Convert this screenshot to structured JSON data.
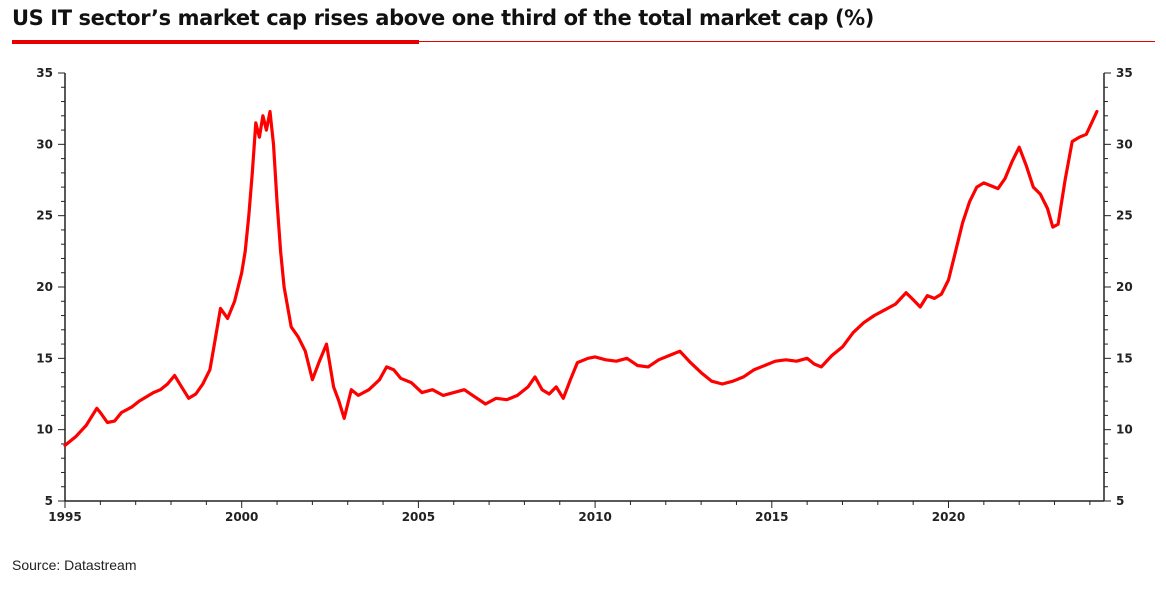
{
  "title": "US IT sector’s market cap rises above one third of the total market cap (%)",
  "source": "Source: Datastream",
  "colors": {
    "accent": "#e60000",
    "line": "#ff0000",
    "axis": "#222222",
    "text": "#111111"
  },
  "chart_data": {
    "type": "line",
    "title": "US IT sector’s market cap rises above one third of the total market cap (%)",
    "xlabel": "",
    "ylabel": "",
    "xlim": [
      1995,
      2024.4
    ],
    "ylim": [
      5,
      35
    ],
    "xticks": [
      1995,
      2000,
      2005,
      2010,
      2015,
      2020
    ],
    "yticks": [
      5,
      10,
      15,
      20,
      25,
      30,
      35
    ],
    "dual_y_axis": true,
    "grid": false,
    "legend": "none",
    "series": [
      {
        "color": "#ff0000",
        "x": [
          1995.0,
          1995.3,
          1995.6,
          1995.9,
          1996.0,
          1996.2,
          1996.4,
          1996.6,
          1996.9,
          1997.1,
          1997.3,
          1997.5,
          1997.7,
          1997.9,
          1998.1,
          1998.3,
          1998.5,
          1998.7,
          1998.9,
          1999.1,
          1999.2,
          1999.4,
          1999.6,
          1999.8,
          2000.0,
          2000.1,
          2000.2,
          2000.3,
          2000.4,
          2000.5,
          2000.6,
          2000.7,
          2000.8,
          2000.9,
          2001.0,
          2001.1,
          2001.2,
          2001.4,
          2001.6,
          2001.8,
          2002.0,
          2002.2,
          2002.4,
          2002.6,
          2002.75,
          2002.9,
          2003.1,
          2003.3,
          2003.6,
          2003.9,
          2004.1,
          2004.3,
          2004.5,
          2004.8,
          2005.1,
          2005.4,
          2005.7,
          2006.0,
          2006.3,
          2006.6,
          2006.9,
          2007.2,
          2007.5,
          2007.8,
          2008.1,
          2008.3,
          2008.5,
          2008.7,
          2008.9,
          2009.1,
          2009.3,
          2009.5,
          2009.8,
          2010.0,
          2010.3,
          2010.6,
          2010.9,
          2011.2,
          2011.5,
          2011.8,
          2012.1,
          2012.4,
          2012.7,
          2013.0,
          2013.3,
          2013.6,
          2013.9,
          2014.2,
          2014.5,
          2014.8,
          2015.1,
          2015.4,
          2015.7,
          2016.0,
          2016.2,
          2016.4,
          2016.7,
          2017.0,
          2017.3,
          2017.6,
          2017.9,
          2018.2,
          2018.5,
          2018.8,
          2019.0,
          2019.2,
          2019.4,
          2019.6,
          2019.8,
          2020.0,
          2020.2,
          2020.4,
          2020.6,
          2020.8,
          2021.0,
          2021.2,
          2021.4,
          2021.6,
          2021.8,
          2022.0,
          2022.2,
          2022.4,
          2022.6,
          2022.8,
          2022.95,
          2023.1,
          2023.3,
          2023.5,
          2023.7,
          2023.9,
          2024.05,
          2024.2
        ],
        "y": [
          8.9,
          9.5,
          10.3,
          11.5,
          11.2,
          10.5,
          10.6,
          11.2,
          11.6,
          12.0,
          12.3,
          12.6,
          12.8,
          13.2,
          13.8,
          13.0,
          12.2,
          12.5,
          13.2,
          14.2,
          15.6,
          18.5,
          17.8,
          19.0,
          21.0,
          22.5,
          25.0,
          28.0,
          31.5,
          30.5,
          32.0,
          31.0,
          32.3,
          30.0,
          26.0,
          22.5,
          20.0,
          17.2,
          16.5,
          15.5,
          13.5,
          14.8,
          16.0,
          13.0,
          12.0,
          10.8,
          12.8,
          12.4,
          12.8,
          13.5,
          14.4,
          14.2,
          13.6,
          13.3,
          12.6,
          12.8,
          12.4,
          12.6,
          12.8,
          12.3,
          11.8,
          12.2,
          12.1,
          12.4,
          13.0,
          13.7,
          12.8,
          12.5,
          13.0,
          12.2,
          13.5,
          14.7,
          15.0,
          15.1,
          14.9,
          14.8,
          15.0,
          14.5,
          14.4,
          14.9,
          15.2,
          15.5,
          14.7,
          14.0,
          13.4,
          13.2,
          13.4,
          13.7,
          14.2,
          14.5,
          14.8,
          14.9,
          14.8,
          15.0,
          14.6,
          14.4,
          15.2,
          15.8,
          16.8,
          17.5,
          18.0,
          18.4,
          18.8,
          19.6,
          19.1,
          18.6,
          19.4,
          19.2,
          19.5,
          20.5,
          22.5,
          24.5,
          26.0,
          27.0,
          27.3,
          27.1,
          26.9,
          27.6,
          28.8,
          29.8,
          28.5,
          27.0,
          26.5,
          25.5,
          24.2,
          24.4,
          27.5,
          30.2,
          30.5,
          30.7,
          31.5,
          32.3
        ]
      }
    ]
  }
}
